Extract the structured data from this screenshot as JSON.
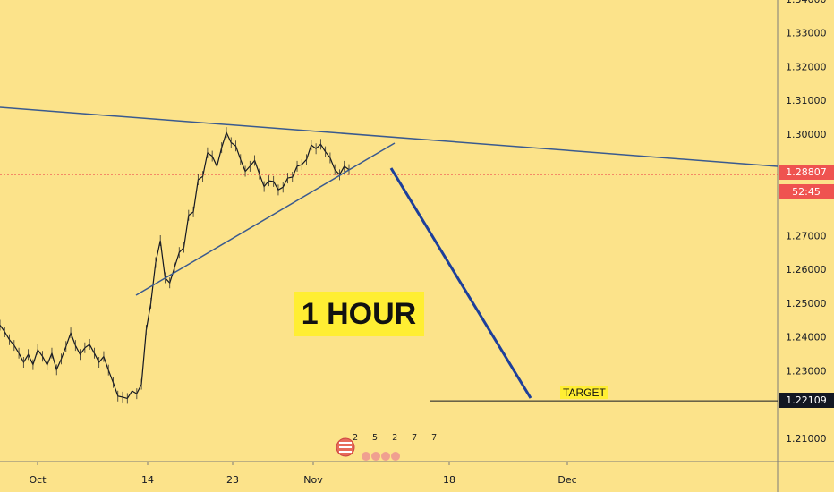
{
  "chart_data": {
    "type": "line",
    "title": "1 HOUR",
    "xlabel": "",
    "ylabel": "",
    "ylim": [
      1.2,
      1.345
    ],
    "x_ticks": [
      "Oct",
      "14",
      "23",
      "Nov",
      "18",
      "Dec"
    ],
    "y_ticks": [
      "1.34000",
      "1.33000",
      "1.32000",
      "1.31000",
      "1.30000",
      "1.28807",
      "1.27000",
      "1.26000",
      "1.25000",
      "1.24000",
      "1.23000",
      "1.22109",
      "1.21000"
    ],
    "y_tick_values": [
      1.34,
      1.33,
      1.32,
      1.31,
      1.3,
      1.28807,
      1.27,
      1.26,
      1.25,
      1.24,
      1.23,
      1.22109,
      1.21
    ],
    "grid": false,
    "series": [
      {
        "values": [
          1.2435,
          1.2415,
          1.2392,
          1.2375,
          1.2352,
          1.2325,
          1.2348,
          1.2318,
          1.2362,
          1.2343,
          1.2317,
          1.2352,
          1.2303,
          1.2335,
          1.2372,
          1.2412,
          1.2375,
          1.2348,
          1.2368,
          1.2378,
          1.2352,
          1.2325,
          1.2342,
          1.2302,
          1.2265,
          1.2225,
          1.2222,
          1.2218,
          1.224,
          1.2232,
          1.226,
          1.242,
          1.25,
          1.262,
          1.2685,
          1.2575,
          1.256,
          1.2605,
          1.265,
          1.2665,
          1.276,
          1.277,
          1.2865,
          1.2875,
          1.2945,
          1.2935,
          1.2905,
          1.296,
          1.3005,
          1.2975,
          1.2965,
          1.2925,
          1.289,
          1.2905,
          1.2922,
          1.2882,
          1.2845,
          1.2862,
          1.286,
          1.2835,
          1.2843,
          1.287,
          1.2873,
          1.2905,
          1.291,
          1.2925,
          1.2968,
          1.2957,
          1.297,
          1.2948,
          1.293,
          1.2895,
          1.288,
          1.2905,
          1.2895
        ]
      }
    ],
    "current_price": "1.28807",
    "countdown": "52:45",
    "target_price": "1.22109",
    "target_label": "TARGET",
    "badge_digits": "2 5 2 7 7",
    "colors": {
      "background": "#fce38a",
      "price_line": "#131722",
      "trendline": "#3a5a8f",
      "projection": "#1d3f9a",
      "price_tag": "#ef5350",
      "target_tag": "#131722",
      "label_box": "#ffee33"
    }
  }
}
